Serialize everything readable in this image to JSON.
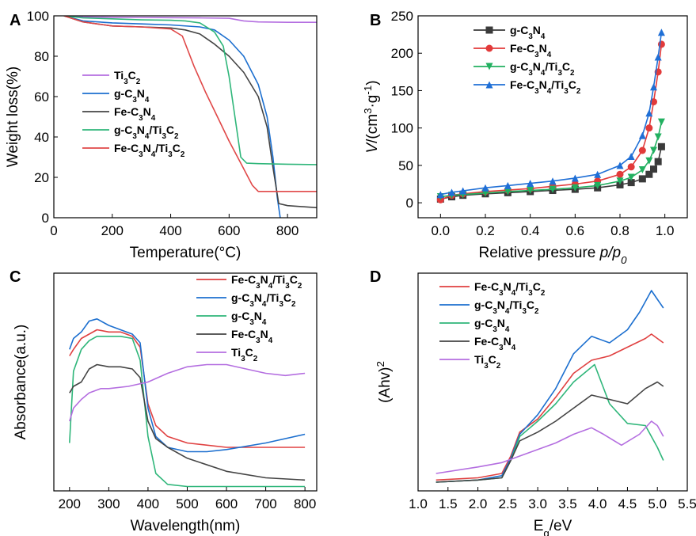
{
  "figure": {
    "panel_letters": [
      "A",
      "B",
      "C",
      "D"
    ]
  },
  "chart_data": [
    {
      "id": "A",
      "type": "line",
      "panel_letter": "A",
      "xlabel": "Temperature(°C)",
      "ylabel": "Weight loss(%)",
      "xlim": [
        0,
        900
      ],
      "ylim": [
        0,
        100
      ],
      "xticks": [
        "0",
        "200",
        "400",
        "600",
        "800"
      ],
      "yticks": [
        "0",
        "20",
        "40",
        "60",
        "80",
        "100"
      ],
      "legend": [
        "Ti3C2",
        "g-C3N4",
        "Fe-C3N4",
        "g-C3N4/Ti3C2",
        "Fe-C3N4/Ti3C2"
      ],
      "series": [
        {
          "name": "Ti3C2",
          "color": "#b46ee0",
          "x": [
            35,
            100,
            200,
            300,
            400,
            500,
            600,
            650,
            700,
            800,
            900
          ],
          "y": [
            100,
            99.5,
            99.3,
            99.2,
            99.1,
            99,
            98.8,
            97.5,
            97,
            96.8,
            96.8
          ]
        },
        {
          "name": "g-C3N4",
          "color": "#1c6fcf",
          "x": [
            35,
            100,
            200,
            300,
            400,
            500,
            550,
            600,
            650,
            700,
            730,
            750,
            765,
            775
          ],
          "y": [
            100,
            97.5,
            96.5,
            96,
            95.5,
            94.5,
            93,
            88,
            80,
            66,
            50,
            30,
            10,
            0
          ]
        },
        {
          "name": "Fe-C3N4",
          "color": "#444444",
          "x": [
            35,
            100,
            200,
            300,
            400,
            450,
            500,
            550,
            600,
            650,
            700,
            730,
            750,
            770,
            800,
            900
          ],
          "y": [
            100,
            97,
            95,
            94.5,
            94,
            93,
            91,
            86,
            80,
            72,
            60,
            45,
            25,
            7,
            6,
            5
          ]
        },
        {
          "name": "g-C3N4/Ti3C2",
          "color": "#2fb67a",
          "x": [
            35,
            100,
            200,
            300,
            400,
            450,
            500,
            550,
            580,
            600,
            620,
            640,
            660,
            700,
            800,
            900
          ],
          "y": [
            100,
            99,
            98.5,
            98,
            97.8,
            97.5,
            96.5,
            92,
            85,
            70,
            50,
            30,
            27,
            26.8,
            26.5,
            26.3
          ]
        },
        {
          "name": "Fe-C3N4/Ti3C2",
          "color": "#e04848",
          "x": [
            35,
            100,
            200,
            300,
            400,
            440,
            480,
            520,
            560,
            600,
            640,
            680,
            700,
            720,
            800,
            900
          ],
          "y": [
            100,
            97,
            95,
            94.5,
            93.5,
            90,
            75,
            62,
            50,
            38,
            27,
            16,
            13,
            13,
            13,
            13
          ]
        }
      ]
    },
    {
      "id": "B",
      "type": "line",
      "panel_letter": "B",
      "xlabel": "Relative pressure p/p0",
      "ylabel": "V/(cm3·g-1)",
      "xlim": [
        -0.1,
        1.1
      ],
      "ylim": [
        -20,
        250
      ],
      "xticks": [
        "0.0",
        "0.2",
        "0.4",
        "0.6",
        "0.8",
        "1.0"
      ],
      "yticks": [
        "0",
        "50",
        "100",
        "150",
        "200",
        "250"
      ],
      "legend": [
        "g-C3N4",
        "Fe-C3N4",
        "g-C3N4/Ti3C2",
        "Fe-C3N4/Ti3C2"
      ],
      "series": [
        {
          "name": "g-C3N4",
          "color": "#3a3a3a",
          "marker": "square",
          "x": [
            0,
            0.05,
            0.1,
            0.2,
            0.3,
            0.4,
            0.5,
            0.6,
            0.7,
            0.8,
            0.85,
            0.9,
            0.93,
            0.95,
            0.97,
            0.985
          ],
          "y": [
            5,
            8,
            10,
            12,
            13.5,
            15,
            16.5,
            18,
            20,
            24,
            27,
            32,
            38,
            45,
            55,
            75
          ]
        },
        {
          "name": "Fe-C3N4",
          "color": "#e23a3a",
          "marker": "circle",
          "x": [
            0,
            0.05,
            0.1,
            0.2,
            0.3,
            0.4,
            0.5,
            0.6,
            0.7,
            0.8,
            0.85,
            0.9,
            0.93,
            0.95,
            0.97,
            0.985
          ],
          "y": [
            4,
            10,
            12,
            15,
            17,
            19,
            22,
            25,
            29,
            38,
            48,
            70,
            100,
            135,
            175,
            212
          ]
        },
        {
          "name": "g-C3N4/Ti3C2",
          "color": "#22b060",
          "marker": "triangle-down",
          "x": [
            0,
            0.05,
            0.1,
            0.2,
            0.3,
            0.4,
            0.5,
            0.6,
            0.7,
            0.8,
            0.85,
            0.9,
            0.93,
            0.95,
            0.97,
            0.985
          ],
          "y": [
            8,
            10,
            11,
            13,
            15,
            16.5,
            18,
            20,
            23,
            29,
            34,
            44,
            56,
            70,
            88,
            108
          ]
        },
        {
          "name": "Fe-C3N4/Ti3C2",
          "color": "#1f6fd6",
          "marker": "triangle-up",
          "x": [
            0,
            0.05,
            0.1,
            0.2,
            0.3,
            0.4,
            0.5,
            0.6,
            0.7,
            0.8,
            0.85,
            0.9,
            0.93,
            0.95,
            0.97,
            0.985
          ],
          "y": [
            11,
            14,
            16,
            20,
            23,
            26,
            29,
            33,
            38,
            50,
            62,
            90,
            120,
            155,
            195,
            228
          ]
        }
      ]
    },
    {
      "id": "C",
      "type": "line",
      "panel_letter": "C",
      "xlabel": "Wavelength(nm)",
      "ylabel": "Absorbance(a.u.)",
      "xlim": [
        160,
        830
      ],
      "ylim": [
        0,
        1
      ],
      "xticks": [
        "200",
        "300",
        "400",
        "500",
        "600",
        "700",
        "800"
      ],
      "legend": [
        "Fe-C3N4/Ti3C2",
        "g-C3N4/Ti3C2",
        "g-C3N4",
        "Fe-C3N4",
        "Ti3C2"
      ],
      "series": [
        {
          "name": "Fe-C3N4/Ti3C2",
          "color": "#e04040",
          "x": [
            200,
            210,
            230,
            250,
            270,
            300,
            330,
            360,
            380,
            400,
            420,
            450,
            500,
            600,
            700,
            800
          ],
          "y": [
            0.62,
            0.65,
            0.7,
            0.72,
            0.74,
            0.73,
            0.73,
            0.71,
            0.66,
            0.4,
            0.3,
            0.25,
            0.22,
            0.2,
            0.2,
            0.2
          ]
        },
        {
          "name": "g-C3N4/Ti3C2",
          "color": "#1c6fcf",
          "x": [
            200,
            210,
            230,
            250,
            270,
            300,
            330,
            360,
            380,
            400,
            420,
            450,
            500,
            550,
            600,
            700,
            800
          ],
          "y": [
            0.65,
            0.7,
            0.73,
            0.78,
            0.79,
            0.76,
            0.74,
            0.72,
            0.68,
            0.38,
            0.25,
            0.2,
            0.18,
            0.18,
            0.19,
            0.22,
            0.26
          ]
        },
        {
          "name": "g-C3N4",
          "color": "#2fb67a",
          "x": [
            200,
            210,
            230,
            250,
            270,
            300,
            330,
            360,
            380,
            400,
            420,
            450,
            500,
            600,
            700,
            800
          ],
          "y": [
            0.22,
            0.55,
            0.65,
            0.69,
            0.71,
            0.71,
            0.71,
            0.7,
            0.6,
            0.25,
            0.08,
            0.03,
            0.02,
            0.02,
            0.02,
            0.02
          ]
        },
        {
          "name": "Fe-C3N4",
          "color": "#444444",
          "x": [
            200,
            210,
            230,
            250,
            270,
            300,
            330,
            360,
            380,
            400,
            420,
            450,
            500,
            600,
            700,
            800
          ],
          "y": [
            0.45,
            0.48,
            0.5,
            0.56,
            0.58,
            0.57,
            0.57,
            0.56,
            0.52,
            0.32,
            0.24,
            0.2,
            0.15,
            0.09,
            0.06,
            0.05
          ]
        },
        {
          "name": "Ti3C2",
          "color": "#b46ee0",
          "x": [
            200,
            210,
            230,
            250,
            280,
            300,
            350,
            400,
            450,
            500,
            550,
            600,
            650,
            700,
            750,
            800
          ],
          "y": [
            0.32,
            0.38,
            0.42,
            0.45,
            0.47,
            0.47,
            0.48,
            0.5,
            0.54,
            0.57,
            0.58,
            0.58,
            0.56,
            0.54,
            0.53,
            0.54
          ]
        }
      ]
    },
    {
      "id": "D",
      "type": "line",
      "panel_letter": "D",
      "xlabel": "Eg/eV",
      "ylabel": "(Ahv)2",
      "xlim": [
        1.0,
        5.5
      ],
      "ylim": [
        0,
        1
      ],
      "xticks": [
        "1.0",
        "1.5",
        "2.0",
        "2.5",
        "3.0",
        "3.5",
        "4.0",
        "4.5",
        "5.0",
        "5.5"
      ],
      "legend": [
        "Fe-C3N4/Ti3C2",
        "g-C3N4/Ti3C2",
        "g-C3N4",
        "Fe-C3N4",
        "Ti3C2"
      ],
      "series": [
        {
          "name": "Fe-C3N4/Ti3C2",
          "color": "#e04040",
          "x": [
            1.3,
            2.0,
            2.4,
            2.55,
            2.7,
            3.0,
            3.3,
            3.6,
            3.9,
            4.2,
            4.5,
            4.8,
            4.9,
            5.0,
            5.1
          ],
          "y": [
            0.05,
            0.06,
            0.08,
            0.16,
            0.27,
            0.33,
            0.43,
            0.54,
            0.6,
            0.62,
            0.66,
            0.7,
            0.72,
            0.7,
            0.68
          ]
        },
        {
          "name": "g-C3N4/Ti3C2",
          "color": "#1c6fcf",
          "x": [
            1.3,
            2.0,
            2.4,
            2.55,
            2.7,
            3.0,
            3.3,
            3.6,
            3.9,
            4.2,
            4.5,
            4.7,
            4.9,
            5.0,
            5.1
          ],
          "y": [
            0.04,
            0.05,
            0.07,
            0.15,
            0.26,
            0.35,
            0.47,
            0.63,
            0.71,
            0.68,
            0.74,
            0.82,
            0.92,
            0.88,
            0.84
          ]
        },
        {
          "name": "g-C3N4",
          "color": "#2fb67a",
          "x": [
            1.3,
            2.0,
            2.4,
            2.55,
            2.7,
            3.0,
            3.3,
            3.6,
            3.95,
            4.2,
            4.5,
            4.8,
            5.0,
            5.1
          ],
          "y": [
            0.04,
            0.05,
            0.06,
            0.14,
            0.25,
            0.32,
            0.4,
            0.5,
            0.58,
            0.4,
            0.31,
            0.3,
            0.2,
            0.14
          ]
        },
        {
          "name": "Fe-C3N4",
          "color": "#444444",
          "x": [
            1.3,
            2.0,
            2.4,
            2.55,
            2.7,
            3.0,
            3.3,
            3.6,
            3.9,
            4.2,
            4.5,
            4.8,
            5.0,
            5.1
          ],
          "y": [
            0.04,
            0.05,
            0.06,
            0.14,
            0.23,
            0.27,
            0.32,
            0.38,
            0.44,
            0.42,
            0.4,
            0.47,
            0.5,
            0.48
          ]
        },
        {
          "name": "Ti3C2",
          "color": "#b46ee0",
          "x": [
            1.3,
            2.0,
            2.4,
            2.7,
            3.0,
            3.3,
            3.6,
            3.9,
            4.1,
            4.4,
            4.7,
            4.9,
            5.0,
            5.1
          ],
          "y": [
            0.08,
            0.11,
            0.13,
            0.16,
            0.19,
            0.22,
            0.26,
            0.29,
            0.26,
            0.21,
            0.26,
            0.32,
            0.3,
            0.25
          ]
        }
      ]
    }
  ]
}
